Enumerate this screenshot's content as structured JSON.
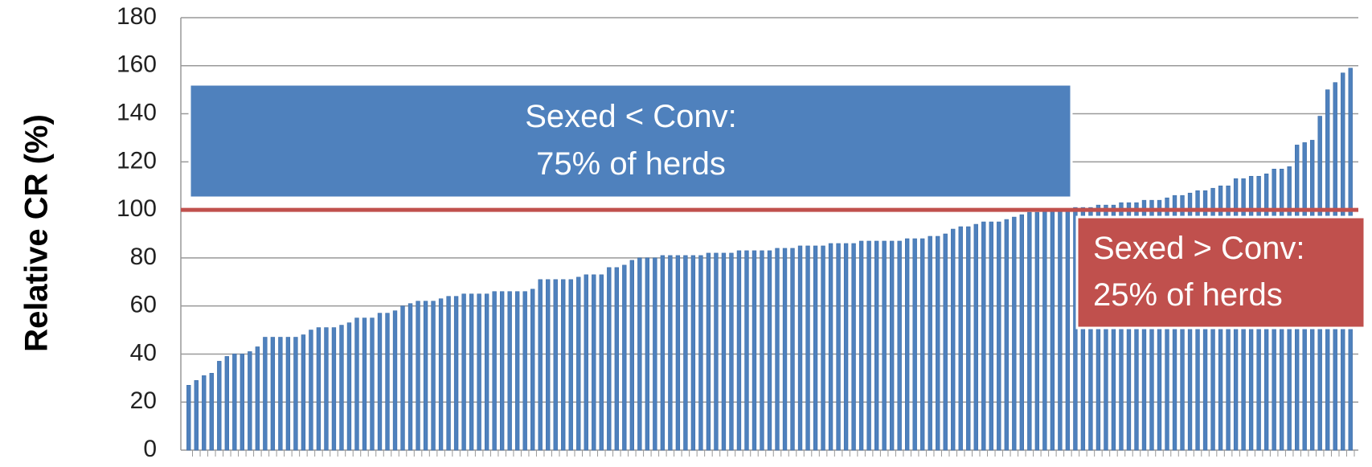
{
  "chart_data": {
    "type": "bar",
    "y_label": "Relative CR (%)",
    "values": [
      27,
      29,
      31,
      32,
      37,
      39,
      40,
      40,
      41,
      43,
      47,
      47,
      47,
      47,
      47,
      48,
      50,
      51,
      51,
      51,
      52,
      53,
      55,
      55,
      55,
      57,
      57,
      58,
      60,
      61,
      62,
      62,
      62,
      63,
      64,
      64,
      65,
      65,
      65,
      65,
      66,
      66,
      66,
      66,
      66,
      67,
      71,
      71,
      71,
      71,
      71,
      72,
      73,
      73,
      73,
      76,
      76,
      77,
      79,
      80,
      80,
      80,
      81,
      81,
      81,
      81,
      81,
      81,
      82,
      82,
      82,
      82,
      83,
      83,
      83,
      83,
      83,
      84,
      84,
      84,
      85,
      85,
      85,
      85,
      86,
      86,
      86,
      86,
      87,
      87,
      87,
      87,
      87,
      87,
      88,
      88,
      88,
      89,
      89,
      90,
      92,
      93,
      93,
      94,
      95,
      95,
      95,
      96,
      97,
      98,
      99,
      99,
      100,
      100,
      100,
      100,
      101,
      101,
      101,
      102,
      102,
      102,
      103,
      103,
      103,
      104,
      104,
      104,
      105,
      106,
      106,
      107,
      108,
      108,
      109,
      110,
      110,
      113,
      113,
      114,
      114,
      115,
      117,
      117,
      118,
      127,
      128,
      129,
      139,
      150,
      153,
      157,
      159
    ],
    "color": "#4f81bd",
    "ylim": [
      0,
      180
    ],
    "yticks": [
      0,
      20,
      40,
      60,
      80,
      100,
      120,
      140,
      160,
      180
    ],
    "grid": true,
    "reference_line": {
      "value": 100,
      "color": "#c0504d"
    },
    "annotations": [
      {
        "lines": [
          "Sexed < Conv:",
          "75% of herds"
        ],
        "color": "#4f81bd"
      },
      {
        "lines": [
          "Sexed > Conv:",
          "25% of herds"
        ],
        "color": "#c0504d"
      }
    ]
  }
}
